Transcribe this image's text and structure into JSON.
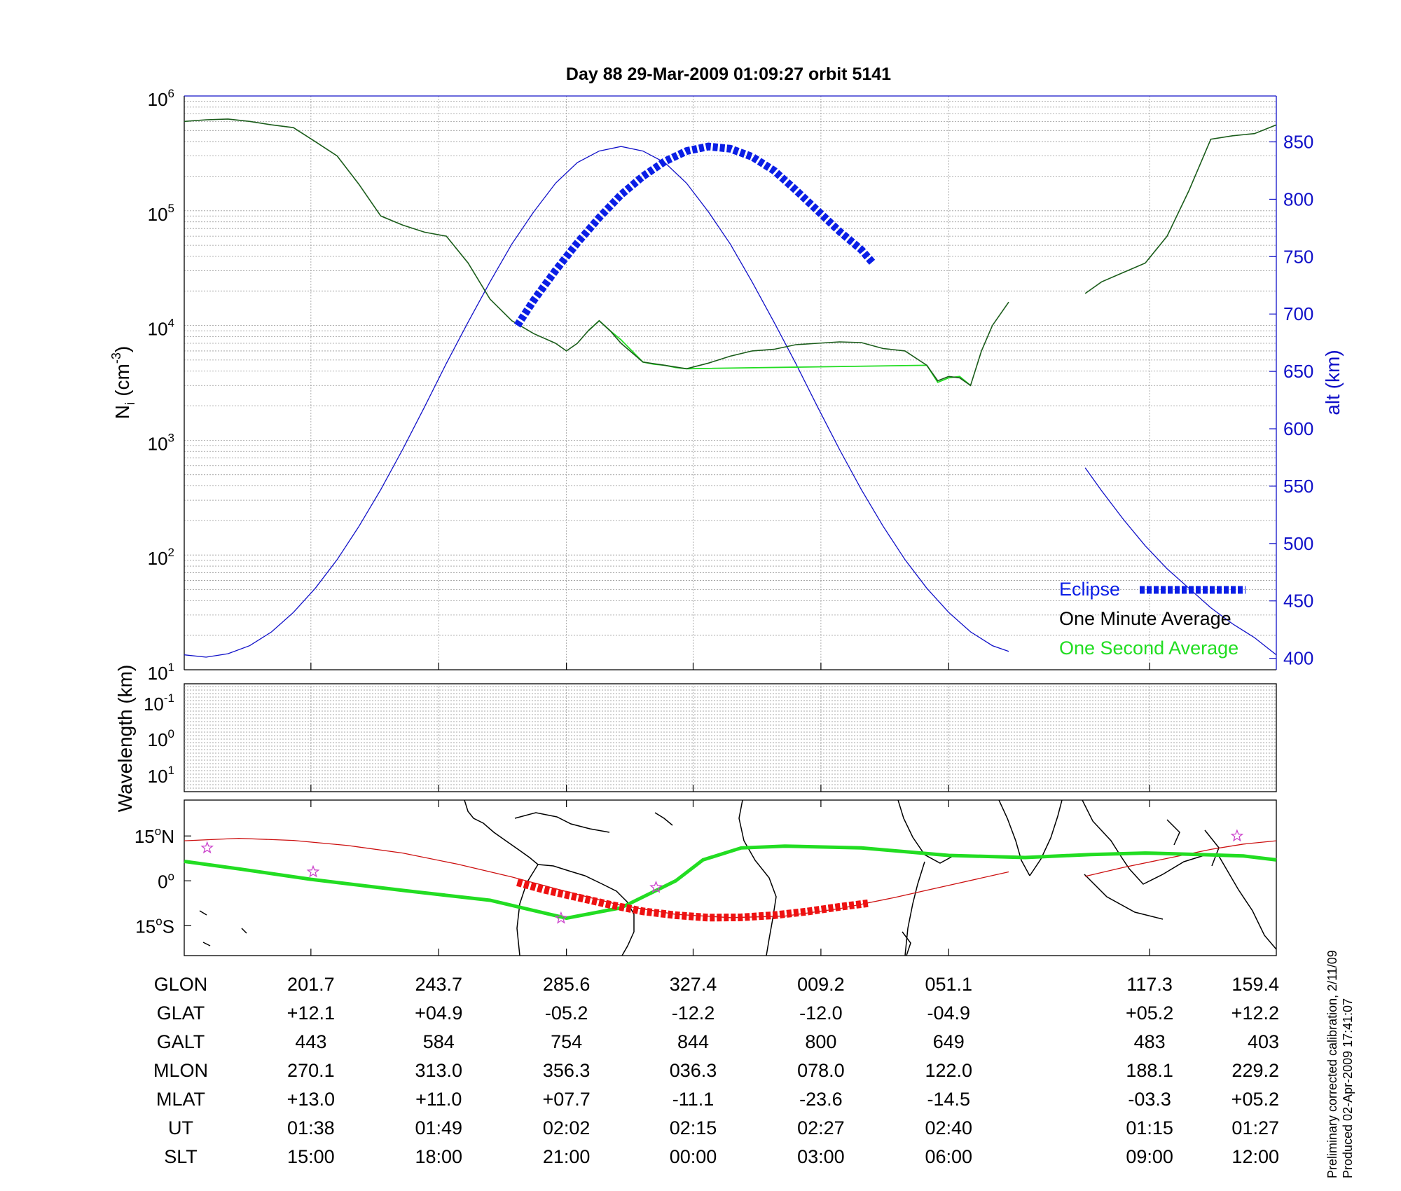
{
  "title": "Day 88  29-Mar-2009 01:09:27   orbit 5141",
  "colors": {
    "altitude": "#1010c8",
    "eclipse": "#0a1ee6",
    "minute_avg": "#1a5c1a",
    "second_avg": "#22dd22",
    "track": "#cc1010",
    "track_eclipse": "#ee1111",
    "dip_equator": "#22dd22",
    "star": "#cc44cc"
  },
  "chart_data": [
    {
      "type": "line",
      "name": "density-altitude",
      "ylabel_main": "N",
      "ylabel_sub": "i",
      "ylabel_unit": "(cm",
      "ylabel_unit_sup": "-3",
      "ylabel_unit_close": ")",
      "ylabel_right": "alt (km)",
      "y_scale": "log",
      "ylim": [
        10,
        1000000
      ],
      "y_ticks": [
        {
          "base": "10",
          "exp": "1"
        },
        {
          "base": "10",
          "exp": "2"
        },
        {
          "base": "10",
          "exp": "3"
        },
        {
          "base": "10",
          "exp": "4"
        },
        {
          "base": "10",
          "exp": "5"
        },
        {
          "base": "10",
          "exp": "6"
        }
      ],
      "y2lim": [
        390,
        890
      ],
      "y2_ticks": [
        "400",
        "450",
        "500",
        "550",
        "600",
        "650",
        "700",
        "750",
        "800",
        "850"
      ],
      "xlim": [
        0,
        100
      ],
      "x_ticks": [
        11.6,
        23.3,
        35,
        46.6,
        58.3,
        70,
        88.4,
        100
      ],
      "grid": true,
      "legend": [
        {
          "label": "Eclipse",
          "style": "eclipse"
        },
        {
          "label": "One Minute Average",
          "style": "minute"
        },
        {
          "label": "One Second Average",
          "style": "second"
        }
      ],
      "legend_position": "bottom-right",
      "series": [
        {
          "key": "altitude",
          "axis": "right",
          "x": [
            0,
            2,
            4,
            6,
            8,
            10,
            12,
            14,
            16,
            18,
            20,
            22,
            24,
            26,
            28,
            30,
            32,
            34,
            36,
            38,
            40,
            42,
            44,
            46,
            48,
            50,
            52,
            54,
            56,
            58,
            60,
            62,
            64,
            66,
            68,
            70,
            72,
            74,
            75.5
          ],
          "y": [
            403,
            401,
            404,
            411,
            423,
            440,
            461,
            486,
            515,
            547,
            582,
            619,
            657,
            693,
            728,
            761,
            789,
            814,
            832,
            842,
            846,
            842,
            832,
            814,
            789,
            761,
            728,
            693,
            657,
            619,
            582,
            547,
            515,
            486,
            461,
            440,
            423,
            411,
            406
          ]
        },
        {
          "key": "altitude_after_gap",
          "axis": "right",
          "x": [
            82.5,
            84,
            86,
            88,
            90,
            92,
            94,
            96,
            98,
            100
          ],
          "y": [
            566,
            546,
            521,
            498,
            478,
            461,
            444,
            430,
            418,
            403
          ]
        },
        {
          "key": "eclipse",
          "axis": "right",
          "x": [
            30.5,
            32,
            34,
            36,
            38,
            40,
            42,
            44,
            46,
            48,
            50,
            52,
            54,
            56,
            58,
            60,
            62,
            63
          ],
          "y": [
            690,
            712,
            738,
            762,
            784,
            804,
            820,
            833,
            842,
            846,
            844,
            837,
            825,
            808,
            790,
            772,
            756,
            745
          ]
        },
        {
          "key": "minute_avg",
          "axis": "left",
          "x": [
            0,
            2,
            4,
            6,
            8,
            10,
            12,
            14,
            16,
            18,
            20,
            22,
            24,
            26,
            28,
            30,
            32,
            34,
            35,
            36,
            37,
            38,
            39,
            40,
            42,
            44,
            46,
            48,
            50,
            52,
            54,
            56,
            58,
            60,
            62,
            64,
            66,
            68,
            69,
            70,
            71,
            72,
            73,
            74,
            75.5
          ],
          "y": [
            600000,
            620000,
            630000,
            600000,
            560000,
            530000,
            400000,
            300000,
            170000,
            90000,
            75000,
            65000,
            60000,
            35000,
            17000,
            11000,
            8500,
            7000,
            6000,
            7000,
            9000,
            11000,
            9000,
            7000,
            4800,
            4500,
            4200,
            4700,
            5400,
            6000,
            6200,
            6800,
            7000,
            7200,
            7100,
            6300,
            6000,
            4500,
            3300,
            3600,
            3500,
            3000,
            6000,
            10000,
            16000
          ]
        },
        {
          "key": "minute_avg_after_gap",
          "axis": "left",
          "x": [
            82.5,
            84,
            86,
            88,
            90,
            92,
            94,
            96,
            98,
            100
          ],
          "y": [
            19000,
            24000,
            29000,
            35000,
            60000,
            150000,
            420000,
            450000,
            470000,
            560000
          ]
        },
        {
          "key": "second_avg",
          "axis": "left",
          "x": [
            37,
            38,
            39,
            40,
            41,
            42,
            43,
            44,
            45,
            46,
            68,
            69,
            70,
            71,
            72
          ],
          "y": [
            9000,
            11000,
            9000,
            7500,
            6000,
            4800,
            4600,
            4500,
            4300,
            4200,
            4500,
            3200,
            3500,
            3600,
            3000
          ]
        }
      ]
    },
    {
      "type": "heatmap",
      "name": "wavelength",
      "ylabel": "Wavelength (km)",
      "y_ticks": [
        {
          "base": "10",
          "exp": "-1"
        },
        {
          "base": "10",
          "exp": "0"
        },
        {
          "base": "10",
          "exp": "1"
        }
      ],
      "grid": true
    },
    {
      "type": "line",
      "name": "ground-track",
      "y_ticks": [
        {
          "value": "15",
          "deg": "o",
          "hemi": "N"
        },
        {
          "value": "0",
          "deg": "o",
          "hemi": ""
        },
        {
          "value": "15",
          "deg": "o",
          "hemi": "S"
        }
      ],
      "ylim": [
        -25,
        27
      ],
      "series": [
        {
          "key": "track",
          "x": [
            0,
            5,
            10,
            15,
            20,
            25,
            30,
            35,
            40,
            45,
            50,
            55,
            60,
            65,
            70,
            75.5
          ],
          "y": [
            13.4,
            14.2,
            13.5,
            11.8,
            9.3,
            5.6,
            1.3,
            -3.6,
            -8.2,
            -11.2,
            -12.3,
            -11.8,
            -9.3,
            -5.6,
            -1.5,
            3
          ]
        },
        {
          "key": "track_after_gap",
          "x": [
            82.5,
            86,
            90,
            94,
            97,
            100
          ],
          "y": [
            1.5,
            4.5,
            7.5,
            10.5,
            12.3,
            13.4
          ]
        },
        {
          "key": "track_eclipse",
          "x": [
            30.5,
            33,
            36,
            39,
            42,
            45,
            48,
            51,
            54,
            57,
            60,
            62.6
          ],
          "y": [
            -0.5,
            -3,
            -5.5,
            -8,
            -10.2,
            -11.5,
            -12.3,
            -12.2,
            -11.5,
            -10.3,
            -8.7,
            -7.5
          ]
        },
        {
          "key": "dip_equator",
          "x": [
            0,
            5,
            11.6,
            20,
            28,
            35,
            40,
            45,
            47.5,
            51,
            55,
            62,
            70,
            77,
            83,
            88,
            93,
            97,
            100
          ],
          "y": [
            6.5,
            4,
            0.5,
            -3.2,
            -6.5,
            -12.5,
            -9,
            0,
            7,
            11,
            11.6,
            11,
            8.5,
            7.8,
            8.8,
            9.3,
            8.8,
            8.3,
            7
          ]
        }
      ],
      "stars": [
        {
          "x": 2.1,
          "y": 11
        },
        {
          "x": 11.8,
          "y": 3
        },
        {
          "x": 34.5,
          "y": -12.5
        },
        {
          "x": 43.2,
          "y": -2.2
        },
        {
          "x": 96.4,
          "y": 15
        }
      ]
    }
  ],
  "ephemeris_rows": [
    {
      "label": "GLON",
      "values": [
        "201.7",
        "243.7",
        "285.6",
        "327.4",
        "009.2",
        "051.1",
        "117.3",
        "159.4"
      ]
    },
    {
      "label": "GLAT",
      "values": [
        "+12.1",
        "+04.9",
        "-05.2",
        "-12.2",
        "-12.0",
        "-04.9",
        "+05.2",
        "+12.2"
      ]
    },
    {
      "label": "GALT",
      "values": [
        "443",
        "584",
        "754",
        "844",
        "800",
        "649",
        "483",
        "403"
      ]
    },
    {
      "label": "MLON",
      "values": [
        "270.1",
        "313.0",
        "356.3",
        "036.3",
        "078.0",
        "122.0",
        "188.1",
        "229.2"
      ]
    },
    {
      "label": "MLAT",
      "values": [
        "+13.0",
        "+11.0",
        "+07.7",
        "-11.1",
        "-23.6",
        "-14.5",
        "-03.3",
        "+05.2"
      ]
    },
    {
      "label": "UT",
      "values": [
        "01:38",
        "01:49",
        "02:02",
        "02:15",
        "02:27",
        "02:40",
        "01:15",
        "01:27"
      ]
    },
    {
      "label": "SLT",
      "values": [
        "15:00",
        "18:00",
        "21:00",
        "00:00",
        "03:00",
        "06:00",
        "09:00",
        "12:00"
      ]
    }
  ],
  "footnote_line1": "Preliminary corrected calibration, 2/11/09",
  "footnote_line2": "Produced 02-Apr-2009 17:41:07"
}
